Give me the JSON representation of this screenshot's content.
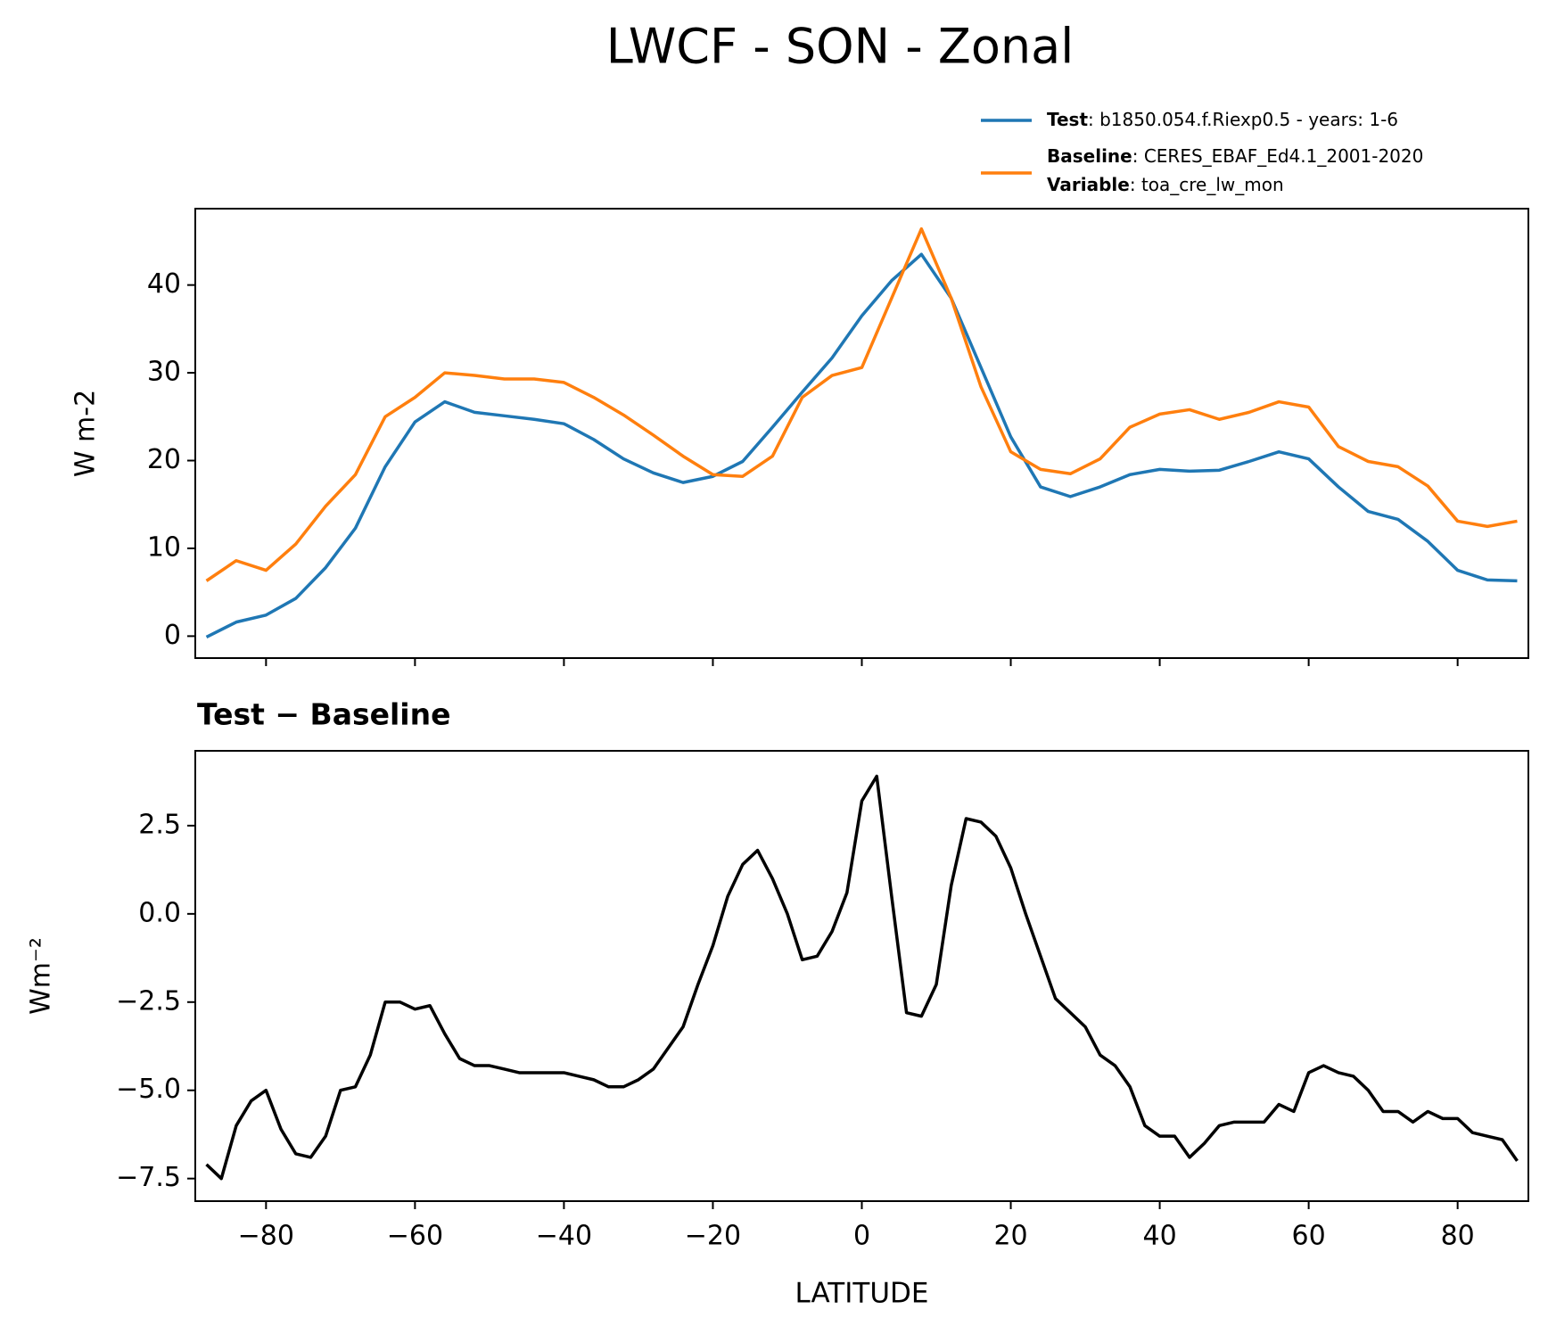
{
  "chart_data": [
    {
      "type": "line",
      "title": "LWCF - SON - Zonal",
      "ylabel": "W m-2",
      "x": [
        -88,
        -84,
        -80,
        -76,
        -72,
        -68,
        -64,
        -60,
        -56,
        -52,
        -48,
        -44,
        -40,
        -36,
        -32,
        -28,
        -24,
        -20,
        -16,
        -12,
        -8,
        -4,
        0,
        4,
        8,
        12,
        16,
        20,
        24,
        28,
        32,
        36,
        40,
        44,
        48,
        52,
        56,
        60,
        64,
        68,
        72,
        76,
        80,
        84,
        88
      ],
      "series": [
        {
          "name": "Test",
          "description": ": b1850.054.f.Riexp0.5 - years: 1-6",
          "color": "#1f77b4",
          "values": [
            -0.1,
            1.6,
            2.4,
            4.3,
            7.8,
            12.3,
            19.3,
            24.4,
            26.7,
            25.5,
            25.1,
            24.7,
            24.2,
            22.4,
            20.2,
            18.6,
            17.5,
            18.2,
            19.9,
            23.8,
            27.8,
            31.7,
            36.5,
            40.5,
            43.5,
            38.5,
            30.6,
            22.7,
            17,
            15.9,
            17,
            18.4,
            19,
            18.8,
            18.9,
            19.9,
            21,
            20.2,
            17,
            14.2,
            13.3,
            10.8,
            7.5,
            6.4,
            6.3
          ]
        },
        {
          "name": "Baseline",
          "description": ": CERES_EBAF_Ed4.1_2001-2020",
          "color": "#ff7f0e",
          "extra_name": "Variable",
          "extra_description": ": toa_cre_lw_mon",
          "values": [
            6.3,
            8.6,
            7.5,
            10.5,
            14.8,
            18.4,
            25,
            27.2,
            30,
            29.7,
            29.3,
            29.3,
            28.9,
            27.2,
            25.2,
            22.9,
            20.5,
            18.4,
            18.2,
            20.5,
            27.2,
            29.7,
            30.6,
            38.5,
            46.4,
            38.5,
            28.4,
            21,
            19,
            18.5,
            20.2,
            23.8,
            25.3,
            25.8,
            24.7,
            25.5,
            26.7,
            26.1,
            21.6,
            19.9,
            19.3,
            17.1,
            13.1,
            12.5,
            13.1
          ]
        }
      ],
      "xlim": [
        -89.5,
        89.5
      ],
      "xticks": [
        -80,
        -60,
        -40,
        -20,
        0,
        20,
        40,
        60,
        80
      ],
      "ylim": [
        -2.5,
        48.7
      ],
      "yticks": [
        0,
        10,
        20,
        30,
        40
      ],
      "legend": "upper right"
    },
    {
      "type": "line",
      "title": "Test − Baseline",
      "xlabel": "LATITUDE",
      "ylabel": "Wm⁻²",
      "x": [
        -88,
        -86,
        -84,
        -82,
        -80,
        -78,
        -76,
        -74,
        -72,
        -70,
        -68,
        -66,
        -64,
        -62,
        -60,
        -58,
        -56,
        -54,
        -52,
        -50,
        -48,
        -46,
        -44,
        -42,
        -40,
        -38,
        -36,
        -34,
        -32,
        -30,
        -28,
        -26,
        -24,
        -22,
        -20,
        -18,
        -16,
        -14,
        -12,
        -10,
        -8,
        -6,
        -4,
        -2,
        0,
        2,
        4,
        6,
        8,
        10,
        12,
        14,
        16,
        18,
        20,
        22,
        24,
        26,
        28,
        30,
        32,
        34,
        36,
        38,
        40,
        42,
        44,
        46,
        48,
        50,
        52,
        54,
        56,
        58,
        60,
        62,
        64,
        66,
        68,
        70,
        72,
        74,
        76,
        78,
        80,
        82,
        84,
        86,
        88
      ],
      "series": [
        {
          "name": "Test − Baseline",
          "color": "#000000",
          "values": [
            -7.1,
            -7.5,
            -6.0,
            -5.3,
            -5.0,
            -6.1,
            -6.8,
            -6.9,
            -6.3,
            -5.0,
            -4.9,
            -4.0,
            -2.5,
            -2.5,
            -2.7,
            -2.6,
            -3.4,
            -4.1,
            -4.3,
            -4.3,
            -4.4,
            -4.5,
            -4.5,
            -4.5,
            -4.5,
            -4.6,
            -4.7,
            -4.9,
            -4.9,
            -4.7,
            -4.4,
            -3.8,
            -3.2,
            -2.0,
            -0.9,
            0.5,
            1.4,
            1.8,
            1.0,
            0.0,
            -1.3,
            -1.2,
            -0.5,
            0.6,
            3.2,
            3.9,
            0.5,
            -2.8,
            -2.9,
            -2.0,
            0.8,
            2.7,
            2.6,
            2.2,
            1.3,
            0.0,
            -1.2,
            -2.4,
            -2.8,
            -3.2,
            -4.0,
            -4.3,
            -4.9,
            -6.0,
            -6.3,
            -6.3,
            -6.9,
            -6.5,
            -6.0,
            -5.9,
            -5.9,
            -5.9,
            -5.4,
            -5.6,
            -4.5,
            -4.3,
            -4.5,
            -4.6,
            -5.0,
            -5.6,
            -5.6,
            -5.9,
            -5.6,
            -5.8,
            -5.8,
            -6.2,
            -6.3,
            -6.4,
            -7.0
          ]
        }
      ],
      "xlim": [
        -89.5,
        89.5
      ],
      "xticks": [
        {
          "value": -80,
          "label": "−80"
        },
        {
          "value": -60,
          "label": "−60"
        },
        {
          "value": -40,
          "label": "−40"
        },
        {
          "value": -20,
          "label": "−20"
        },
        0,
        20,
        40,
        60,
        80
      ],
      "ylim": [
        -8.14,
        4.62
      ],
      "yticks": [
        2.5,
        {
          "value": 0,
          "label": "0.0"
        },
        {
          "value": -2.5,
          "label": "−2.5"
        },
        {
          "value": -5,
          "label": "−5.0"
        },
        {
          "value": -7.5,
          "label": "−7.5"
        }
      ]
    }
  ]
}
